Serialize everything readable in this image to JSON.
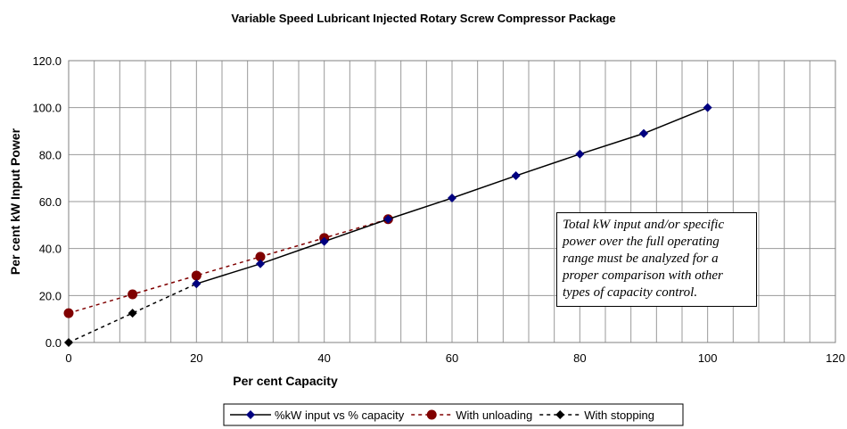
{
  "chart_data": {
    "type": "line",
    "title": "Variable Speed Lubricant Injected Rotary Screw Compressor Package",
    "xlabel": "Per cent Capacity",
    "ylabel": "Per cent kW Input Power",
    "xlim": [
      0,
      120
    ],
    "ylim": [
      0,
      120
    ],
    "xticks": [
      "0",
      "20",
      "40",
      "60",
      "80",
      "100",
      "120"
    ],
    "yticks": [
      "0.0",
      "20.0",
      "40.0",
      "60.0",
      "80.0",
      "100.0",
      "120.0"
    ],
    "grid": true,
    "legend": "bottom",
    "series": [
      {
        "name": "%kW input vs % capacity",
        "color": "#000080",
        "line": "solid",
        "marker": "diamond",
        "x": [
          20,
          30,
          40,
          50,
          60,
          70,
          80,
          90,
          100
        ],
        "y": [
          25,
          33.5,
          43,
          52.5,
          61.5,
          71,
          80.2,
          89,
          100
        ]
      },
      {
        "name": "With unloading",
        "color": "#800000",
        "line": "dashed",
        "marker": "circle",
        "x": [
          0,
          10,
          20,
          30,
          40,
          50
        ],
        "y": [
          12.5,
          20.5,
          28.5,
          36.5,
          44.5,
          52.5
        ]
      },
      {
        "name": "With stopping",
        "color": "#000000",
        "line": "dashed",
        "marker": "diamond",
        "x": [
          0,
          10,
          20
        ],
        "y": [
          0,
          12.5,
          25
        ]
      }
    ],
    "annotation": "Total kW input and/or specific power over the full operating range must be analyzed for a proper comparison with other types of capacity control."
  }
}
